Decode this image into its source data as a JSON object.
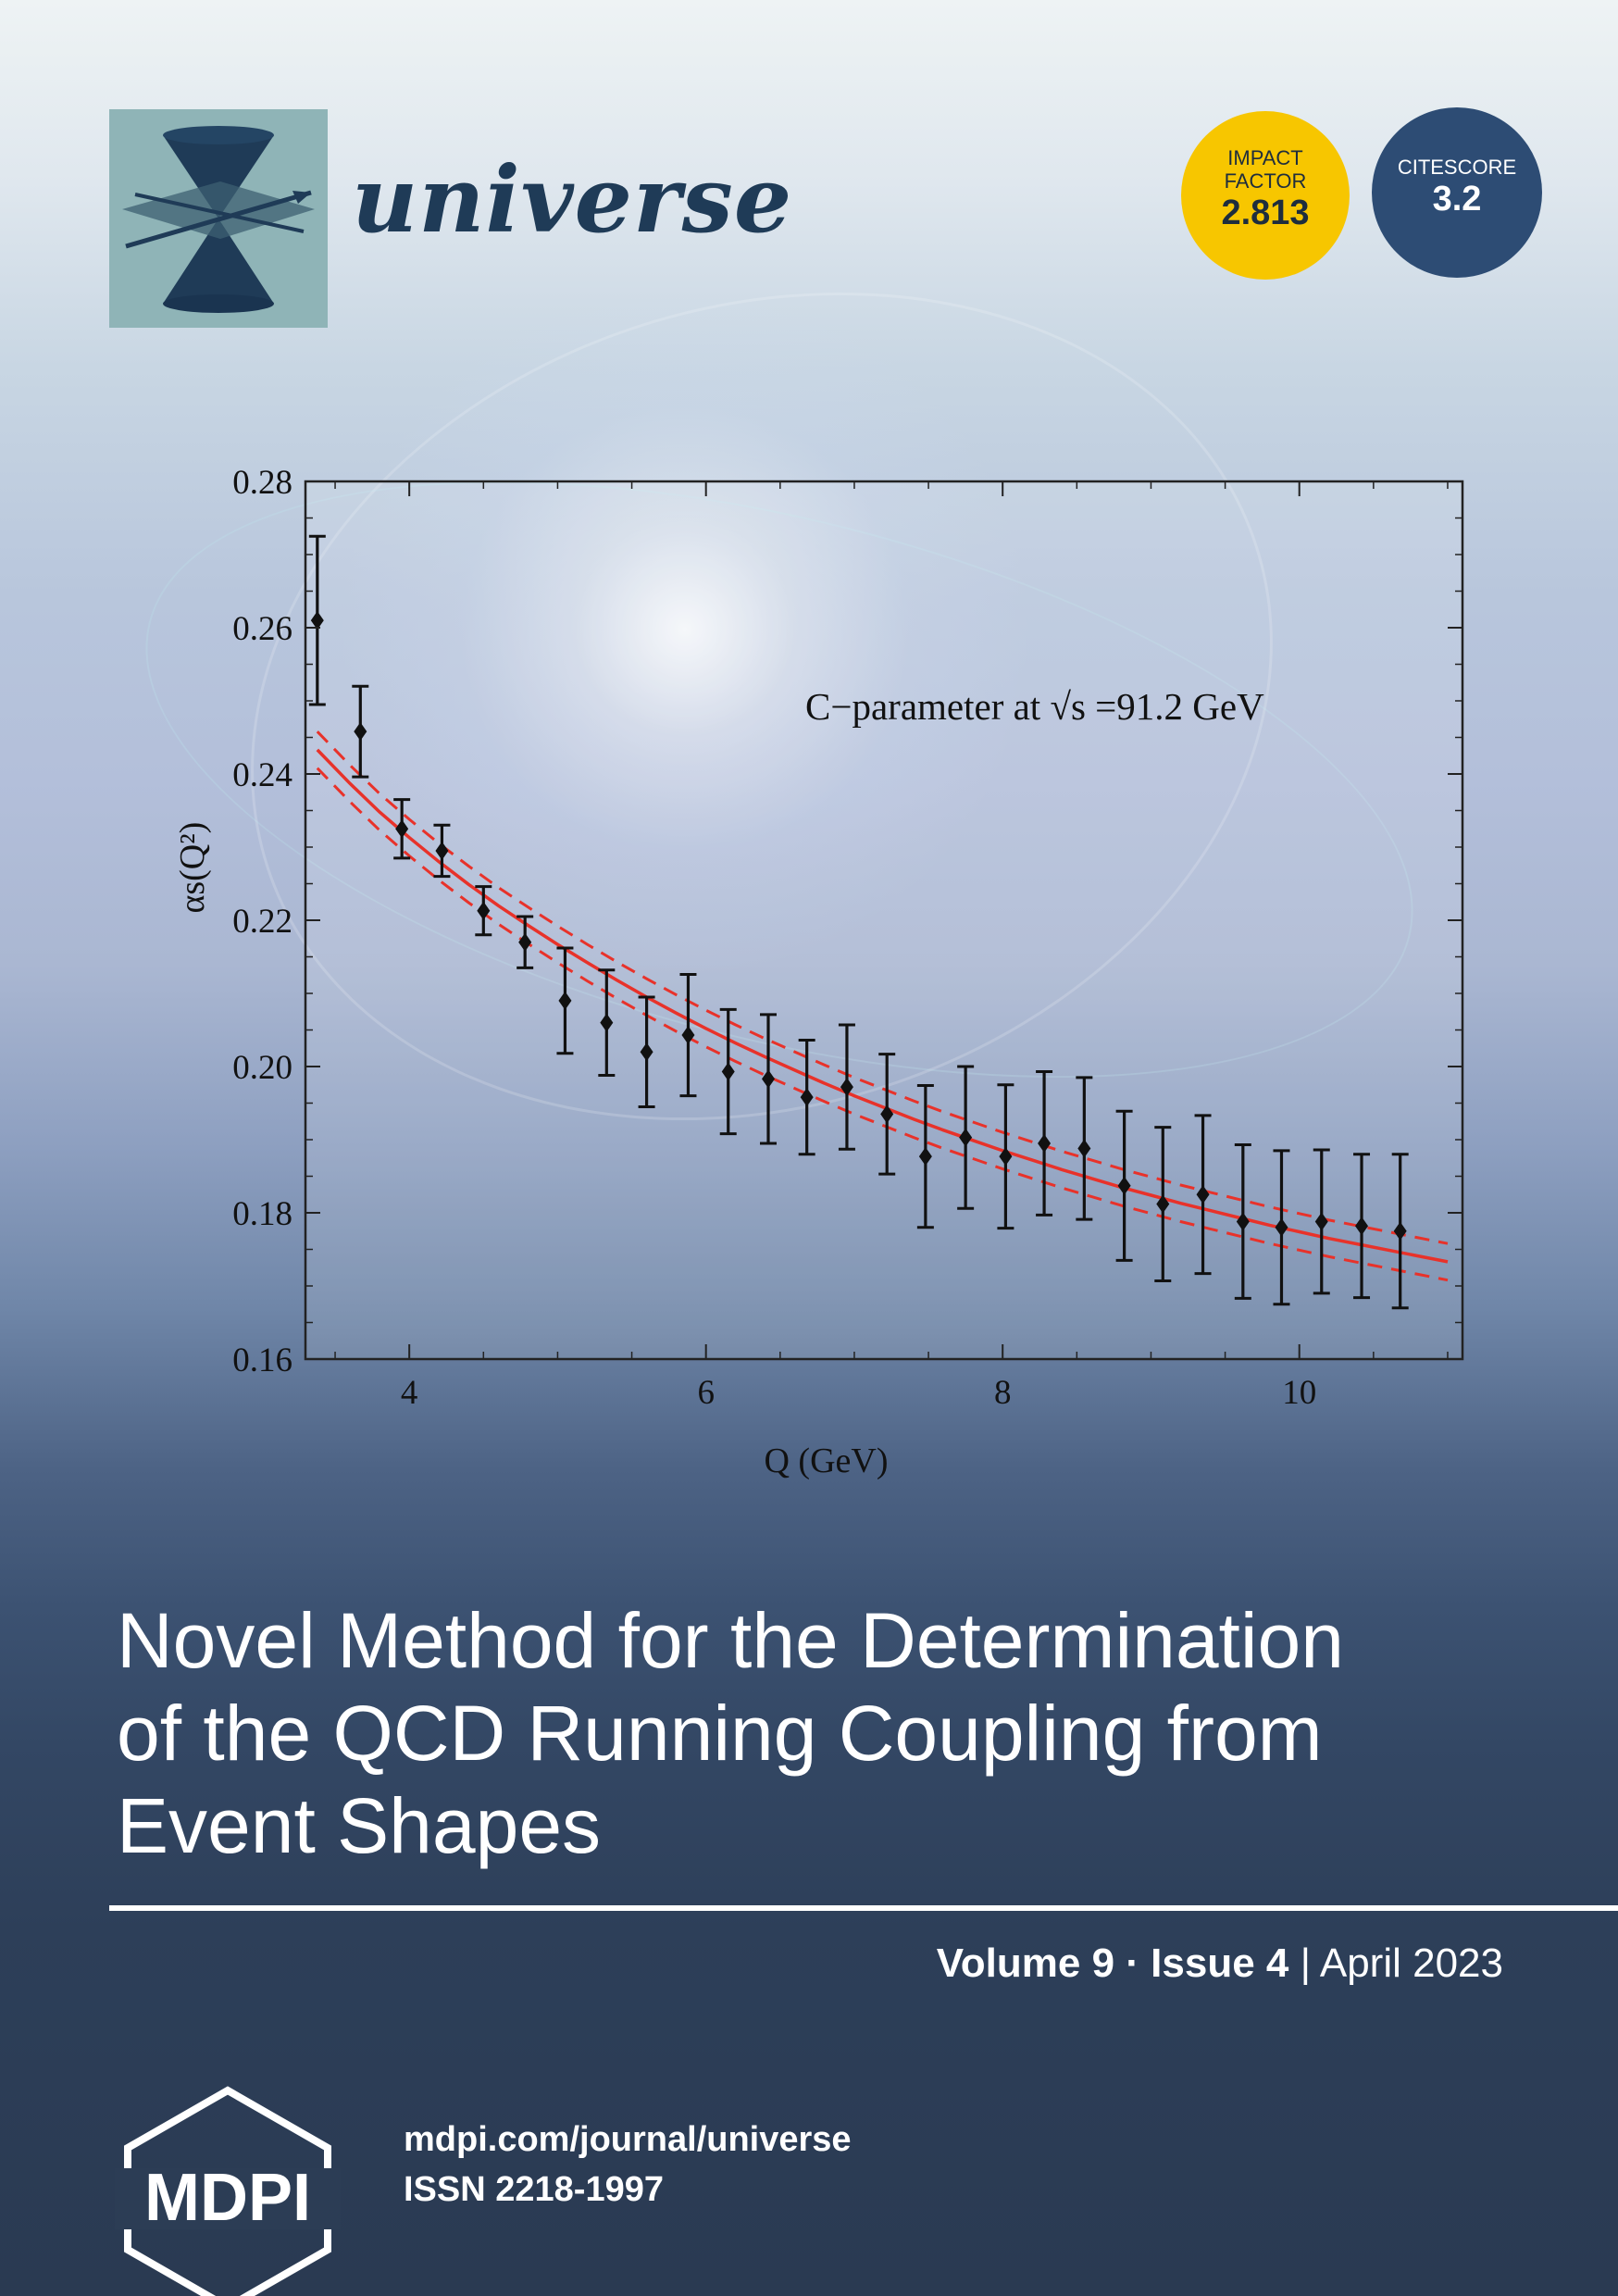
{
  "journal": {
    "name": "universe",
    "impact_factor": {
      "line1": "IMPACT",
      "line2": "FACTOR",
      "value": "2.813"
    },
    "citescore": {
      "label": "CITESCORE",
      "value": "3.2"
    }
  },
  "article": {
    "title_lines": [
      "Novel Method for the Determination",
      "of the QCD Running Coupling from",
      "Event Shapes"
    ]
  },
  "issue": {
    "volume": "Volume 9",
    "separator": "·",
    "issue": "Issue 4",
    "divider": "|",
    "date": "April 2023"
  },
  "publisher": {
    "logo_text": "MDPI",
    "url": "mdpi.com/journal/universe",
    "issn": "ISSN 2218-1997"
  },
  "colors": {
    "fit_line": "#e8322a",
    "points": "#111111",
    "if_badge": "#f7c600",
    "cs_badge": "#2d4c74",
    "logo_bg": "#8fb4b7",
    "logo_shape": "#1f3b57"
  },
  "chart_data": {
    "type": "scatter",
    "annotation": "C−parameter at √s =91.2 GeV",
    "xlabel": "Q (GeV)",
    "ylabel": "αs(Q²)",
    "xlim": [
      3.3,
      11.1
    ],
    "ylim": [
      0.16,
      0.28
    ],
    "xticks": [
      4,
      6,
      8,
      10
    ],
    "yticks": [
      0.16,
      0.18,
      0.2,
      0.22,
      0.24,
      0.26,
      0.28
    ],
    "ytick_labels": [
      "0.16",
      "0.18",
      "0.20",
      "0.22",
      "0.24",
      "0.26",
      "0.28"
    ],
    "points": [
      {
        "x": 3.38,
        "y": 0.261,
        "err": 0.0115
      },
      {
        "x": 3.67,
        "y": 0.2458,
        "err": 0.0062
      },
      {
        "x": 3.95,
        "y": 0.2325,
        "err": 0.004
      },
      {
        "x": 4.22,
        "y": 0.2295,
        "err": 0.0035
      },
      {
        "x": 4.5,
        "y": 0.2213,
        "err": 0.0033
      },
      {
        "x": 4.78,
        "y": 0.217,
        "err": 0.0035
      },
      {
        "x": 5.05,
        "y": 0.209,
        "err": 0.0072
      },
      {
        "x": 5.33,
        "y": 0.206,
        "err": 0.0072
      },
      {
        "x": 5.6,
        "y": 0.202,
        "err": 0.0075
      },
      {
        "x": 5.88,
        "y": 0.2043,
        "err": 0.0083
      },
      {
        "x": 6.15,
        "y": 0.1993,
        "err": 0.0085
      },
      {
        "x": 6.42,
        "y": 0.1983,
        "err": 0.0088
      },
      {
        "x": 6.68,
        "y": 0.1958,
        "err": 0.0078
      },
      {
        "x": 6.95,
        "y": 0.1972,
        "err": 0.0085
      },
      {
        "x": 7.22,
        "y": 0.1935,
        "err": 0.0082
      },
      {
        "x": 7.48,
        "y": 0.1877,
        "err": 0.0097
      },
      {
        "x": 7.75,
        "y": 0.1903,
        "err": 0.0097
      },
      {
        "x": 8.02,
        "y": 0.1877,
        "err": 0.0098
      },
      {
        "x": 8.28,
        "y": 0.1895,
        "err": 0.0098
      },
      {
        "x": 8.55,
        "y": 0.1888,
        "err": 0.0097
      },
      {
        "x": 8.82,
        "y": 0.1837,
        "err": 0.0102
      },
      {
        "x": 9.08,
        "y": 0.1812,
        "err": 0.0105
      },
      {
        "x": 9.35,
        "y": 0.1825,
        "err": 0.0108
      },
      {
        "x": 9.62,
        "y": 0.1788,
        "err": 0.0105
      },
      {
        "x": 9.88,
        "y": 0.178,
        "err": 0.0105
      },
      {
        "x": 10.15,
        "y": 0.1788,
        "err": 0.0098
      },
      {
        "x": 10.42,
        "y": 0.1782,
        "err": 0.0098
      },
      {
        "x": 10.68,
        "y": 0.1775,
        "err": 0.0105
      }
    ],
    "fit": {
      "x": [
        3.38,
        3.6,
        3.8,
        4.0,
        4.2,
        4.4,
        4.6,
        4.8,
        5.0,
        5.2,
        5.4,
        5.6,
        5.8,
        6.0,
        6.2,
        6.4,
        6.6,
        6.8,
        7.0,
        7.2,
        7.4,
        7.6,
        7.8,
        8.0,
        8.2,
        8.4,
        8.6,
        8.8,
        9.0,
        9.2,
        9.4,
        9.6,
        9.8,
        10.0,
        10.2,
        10.4,
        10.6,
        10.8,
        11.0
      ],
      "y": [
        0.2433,
        0.2387,
        0.2348,
        0.2313,
        0.228,
        0.2249,
        0.222,
        0.2193,
        0.2167,
        0.2142,
        0.2118,
        0.2095,
        0.2073,
        0.2052,
        0.2032,
        0.2013,
        0.1995,
        0.1977,
        0.196,
        0.1944,
        0.1928,
        0.1913,
        0.1899,
        0.1885,
        0.1872,
        0.1859,
        0.1847,
        0.1835,
        0.1824,
        0.1813,
        0.1803,
        0.1793,
        0.1783,
        0.1774,
        0.1765,
        0.1757,
        0.1749,
        0.1741,
        0.1733
      ],
      "band": 0.0025
    }
  }
}
